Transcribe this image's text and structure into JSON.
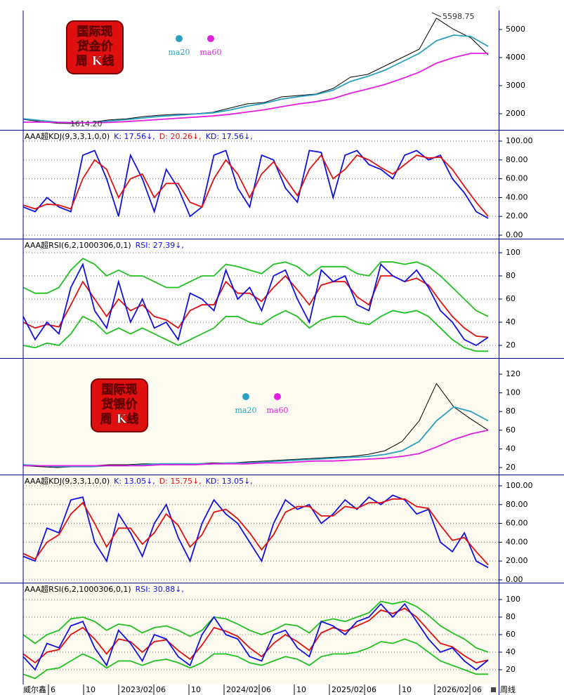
{
  "chart_data": [
    {
      "type": "line",
      "badge": [
        "国际现",
        "货金价",
        "周 K线"
      ],
      "header": [],
      "annotations": [
        "5598.75",
        "1614.20"
      ],
      "ylim": [
        1425,
        5675
      ],
      "yticks": [
        2000,
        3000,
        4000,
        5000
      ],
      "grid": false,
      "series": [
        {
          "color": "#000000",
          "values": [
            1800,
            1720,
            1660,
            1650,
            1700,
            1780,
            1820,
            1900,
            1950,
            1980,
            2000,
            2050,
            2200,
            2350,
            2400,
            2600,
            2650,
            2700,
            2900,
            3300,
            3400,
            3700,
            4000,
            4300,
            5400,
            5000,
            4700,
            4100
          ]
        },
        {
          "name": "ma20",
          "color": "#2aa0c0",
          "values": [
            1820,
            1760,
            1700,
            1680,
            1690,
            1740,
            1790,
            1850,
            1910,
            1950,
            1990,
            2030,
            2130,
            2270,
            2370,
            2520,
            2610,
            2680,
            2840,
            3150,
            3330,
            3550,
            3850,
            4150,
            4600,
            4800,
            4750,
            4400
          ]
        },
        {
          "name": "ma60",
          "color": "#e020e0",
          "values": [
            1700,
            1700,
            1690,
            1680,
            1680,
            1690,
            1720,
            1760,
            1800,
            1840,
            1880,
            1920,
            1980,
            2060,
            2140,
            2250,
            2350,
            2430,
            2540,
            2730,
            2880,
            3040,
            3250,
            3480,
            3800,
            4000,
            4150,
            4150
          ]
        }
      ]
    },
    {
      "type": "line",
      "header": [
        "AAA超KDJ(9,3,3,1,0,0)",
        "K: 17.56↓,",
        "D: 20.26↓,",
        "KD: 17.56↓,"
      ],
      "ylim": [
        -3.7,
        111.2
      ],
      "yticks": [
        {
          "value": 0,
          "label": "0.00"
        },
        {
          "value": 20,
          "label": "20.00"
        },
        {
          "value": 40,
          "label": "40.00"
        },
        {
          "value": 60,
          "label": "60.00"
        },
        {
          "value": 80,
          "label": "80.00"
        },
        {
          "value": 100,
          "label": "100.00"
        }
      ],
      "grid": true,
      "series": [
        {
          "color": "#1010e0",
          "values": [
            30,
            25,
            40,
            30,
            25,
            85,
            90,
            60,
            20,
            85,
            60,
            25,
            70,
            50,
            20,
            30,
            85,
            90,
            50,
            30,
            85,
            80,
            50,
            35,
            90,
            88,
            40,
            85,
            90,
            75,
            70,
            60,
            85,
            90,
            80,
            85,
            60,
            45,
            25,
            18
          ]
        },
        {
          "color": "#e01010",
          "values": [
            32,
            28,
            33,
            32,
            28,
            60,
            80,
            70,
            40,
            60,
            65,
            40,
            55,
            55,
            35,
            30,
            60,
            80,
            65,
            40,
            65,
            78,
            60,
            42,
            70,
            85,
            60,
            70,
            85,
            80,
            72,
            65,
            75,
            85,
            82,
            83,
            70,
            52,
            35,
            20
          ]
        }
      ]
    },
    {
      "type": "line",
      "header": [
        "AAA超RSI(6,2,1000306,0,1)",
        "RSI: 27.39↓,"
      ],
      "ylim": [
        9.1,
        111.5
      ],
      "yticks": [
        20,
        40,
        60,
        80,
        100
      ],
      "grid": true,
      "series": [
        {
          "color": "#20c020",
          "values": [
            70,
            65,
            65,
            70,
            85,
            95,
            90,
            80,
            85,
            80,
            80,
            75,
            70,
            70,
            75,
            80,
            80,
            90,
            88,
            85,
            82,
            90,
            92,
            88,
            80,
            88,
            88,
            88,
            82,
            80,
            92,
            92,
            90,
            92,
            88,
            80,
            70,
            60,
            50,
            45
          ]
        },
        {
          "color": "#20c020",
          "values": [
            20,
            18,
            22,
            20,
            30,
            45,
            40,
            30,
            35,
            30,
            35,
            30,
            25,
            20,
            25,
            30,
            35,
            45,
            45,
            40,
            38,
            45,
            50,
            45,
            35,
            42,
            45,
            45,
            40,
            38,
            45,
            50,
            48,
            50,
            45,
            35,
            25,
            18,
            15,
            15
          ]
        },
        {
          "color": "#e01010",
          "values": [
            40,
            35,
            38,
            36,
            55,
            75,
            60,
            45,
            60,
            50,
            55,
            45,
            42,
            35,
            50,
            55,
            55,
            75,
            65,
            65,
            58,
            70,
            80,
            68,
            55,
            72,
            75,
            75,
            62,
            55,
            80,
            80,
            75,
            78,
            72,
            58,
            45,
            35,
            28,
            27
          ]
        },
        {
          "color": "#1010e0",
          "values": [
            45,
            25,
            40,
            30,
            70,
            90,
            50,
            35,
            75,
            40,
            60,
            35,
            40,
            25,
            65,
            60,
            50,
            85,
            60,
            70,
            50,
            80,
            85,
            60,
            40,
            85,
            75,
            80,
            55,
            50,
            90,
            80,
            75,
            85,
            70,
            50,
            40,
            25,
            20,
            27
          ]
        }
      ]
    },
    {
      "type": "line",
      "badge": [
        "国际现",
        "货银价",
        "周 K线"
      ],
      "header": [],
      "ylim": [
        12.5,
        135.8
      ],
      "yticks": [
        20,
        40,
        60,
        80,
        100,
        120
      ],
      "grid": false,
      "series": [
        {
          "color": "#000000",
          "values": [
            22,
            21,
            20,
            21,
            22,
            23,
            23,
            24,
            24,
            23,
            24,
            25,
            25,
            26,
            27,
            28,
            29,
            30,
            31,
            32,
            34,
            38,
            48,
            70,
            110,
            85,
            72,
            60
          ]
        },
        {
          "name": "ma20",
          "color": "#2aa0c0",
          "values": [
            23,
            22,
            21,
            21,
            21,
            22,
            22,
            23,
            24,
            24,
            24,
            24,
            25,
            25,
            26,
            27,
            28,
            29,
            30,
            31,
            32,
            34,
            38,
            48,
            70,
            85,
            80,
            70
          ]
        },
        {
          "name": "ma60",
          "color": "#e020e0",
          "values": [
            22,
            22,
            22,
            22,
            22,
            22,
            22,
            22,
            23,
            23,
            23,
            24,
            24,
            24,
            25,
            25,
            26,
            27,
            27,
            28,
            29,
            30,
            32,
            35,
            42,
            50,
            56,
            60
          ]
        }
      ]
    },
    {
      "type": "line",
      "header": [
        "AAA超KDJ(9,3,3,1,0,0)",
        "K: 13.05↓,",
        "D: 15.75↓,",
        "KD: 13.05↓,"
      ],
      "ylim": [
        -3,
        111.2
      ],
      "yticks": [
        {
          "value": 0,
          "label": "0.00"
        },
        {
          "value": 20,
          "label": "20.00"
        },
        {
          "value": 40,
          "label": "40.00"
        },
        {
          "value": 60,
          "label": "60.00"
        },
        {
          "value": 80,
          "label": "80.00"
        },
        {
          "value": 100,
          "label": "100.00"
        }
      ],
      "grid": true,
      "series": [
        {
          "color": "#1010e0",
          "values": [
            25,
            20,
            55,
            50,
            85,
            88,
            40,
            20,
            70,
            50,
            25,
            60,
            80,
            45,
            20,
            60,
            85,
            70,
            60,
            40,
            20,
            60,
            85,
            75,
            80,
            60,
            70,
            85,
            75,
            88,
            80,
            90,
            85,
            70,
            75,
            40,
            30,
            50,
            20,
            13
          ]
        },
        {
          "color": "#e01010",
          "values": [
            28,
            22,
            40,
            48,
            70,
            82,
            60,
            35,
            55,
            55,
            38,
            50,
            70,
            58,
            35,
            48,
            72,
            75,
            65,
            50,
            32,
            48,
            72,
            78,
            78,
            68,
            68,
            78,
            76,
            82,
            82,
            86,
            86,
            78,
            76,
            58,
            42,
            45,
            30,
            16
          ]
        }
      ]
    },
    {
      "type": "line",
      "header": [
        "AAA超RSI(6,2,1000306,0,1)",
        "RSI: 30.88↓,"
      ],
      "ylim": [
        3.2,
        118.4
      ],
      "yticks": [
        20,
        40,
        60,
        80,
        100
      ],
      "grid": true,
      "x_labels": [
        "6",
        "10",
        "2023/02",
        "06",
        "10",
        "2024/02",
        "06",
        "10",
        "2025/02",
        "06",
        "10",
        "2026/02",
        "06"
      ],
      "footer_left": "威尔鑫",
      "footer_right": "周线",
      "series": [
        {
          "color": "#20c020",
          "values": [
            60,
            50,
            60,
            65,
            78,
            80,
            75,
            65,
            72,
            70,
            62,
            68,
            70,
            65,
            58,
            65,
            80,
            78,
            72,
            65,
            60,
            65,
            72,
            70,
            62,
            75,
            78,
            75,
            80,
            85,
            98,
            95,
            98,
            92,
            82,
            70,
            62,
            55,
            45,
            40
          ]
        },
        {
          "color": "#20c020",
          "values": [
            15,
            10,
            20,
            22,
            30,
            38,
            32,
            22,
            30,
            30,
            25,
            30,
            32,
            28,
            22,
            28,
            38,
            38,
            35,
            28,
            25,
            30,
            35,
            32,
            25,
            35,
            38,
            38,
            40,
            45,
            52,
            50,
            55,
            50,
            40,
            30,
            25,
            20,
            15,
            15
          ]
        },
        {
          "color": "#e01010",
          "values": [
            38,
            28,
            40,
            43,
            60,
            68,
            55,
            38,
            55,
            52,
            40,
            52,
            54,
            42,
            32,
            48,
            68,
            64,
            58,
            45,
            35,
            50,
            60,
            52,
            42,
            62,
            68,
            64,
            70,
            76,
            88,
            84,
            90,
            80,
            65,
            50,
            46,
            36,
            28,
            31
          ]
        },
        {
          "color": "#1010e0",
          "values": [
            35,
            20,
            50,
            45,
            70,
            75,
            45,
            25,
            65,
            50,
            30,
            60,
            55,
            35,
            25,
            60,
            80,
            60,
            55,
            35,
            30,
            60,
            65,
            45,
            35,
            75,
            70,
            60,
            75,
            80,
            95,
            80,
            95,
            75,
            55,
            40,
            45,
            30,
            20,
            31
          ]
        }
      ]
    }
  ]
}
